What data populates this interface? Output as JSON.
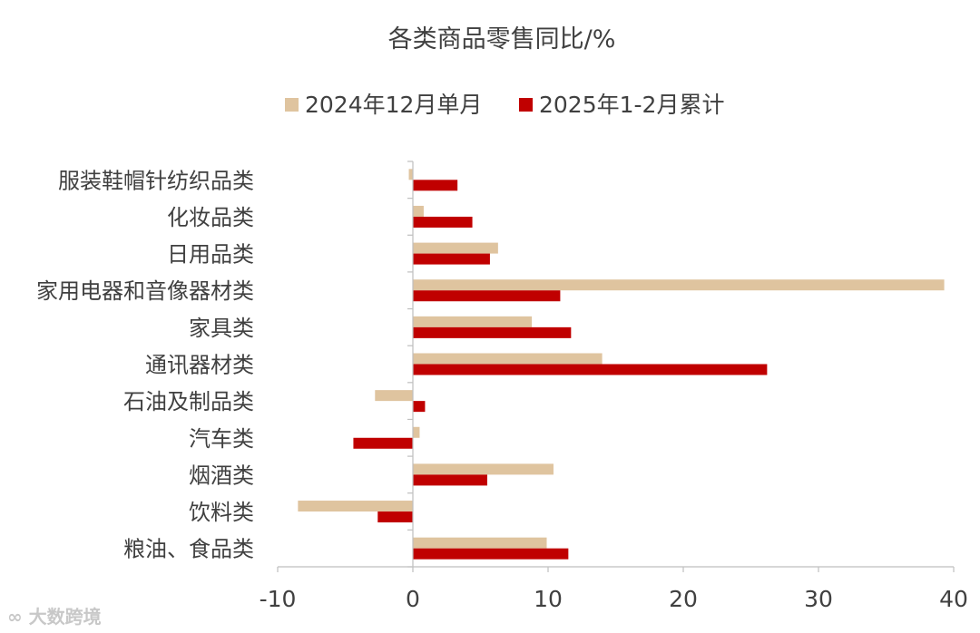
{
  "chart_data": {
    "type": "bar",
    "orientation": "horizontal",
    "title": "各类商品零售同比/%",
    "categories": [
      "服装鞋帽针纺织品类",
      "化妆品类",
      "日用品类",
      "家用电器和音像器材类",
      "家具类",
      "通讯器材类",
      "石油及制品类",
      "汽车类",
      "烟酒类",
      "饮料类",
      "粮油、食品类"
    ],
    "series": [
      {
        "name": "2024年12月单月",
        "color": "#dfc49f",
        "values": [
          -0.3,
          0.8,
          6.3,
          39.3,
          8.8,
          14.0,
          -2.8,
          0.5,
          10.4,
          -8.5,
          9.9
        ]
      },
      {
        "name": "2025年1-2月累计",
        "color": "#c00000",
        "values": [
          3.3,
          4.4,
          5.7,
          10.9,
          11.7,
          26.2,
          0.9,
          -4.4,
          5.5,
          -2.6,
          11.5
        ]
      }
    ],
    "xlim": [
      -10,
      40
    ],
    "xticks": [
      -10,
      0,
      10,
      20,
      30,
      40
    ],
    "xlabel": "",
    "ylabel": "",
    "grid": false,
    "legend_position": "top"
  },
  "watermark": {
    "text": "大数跨境"
  }
}
